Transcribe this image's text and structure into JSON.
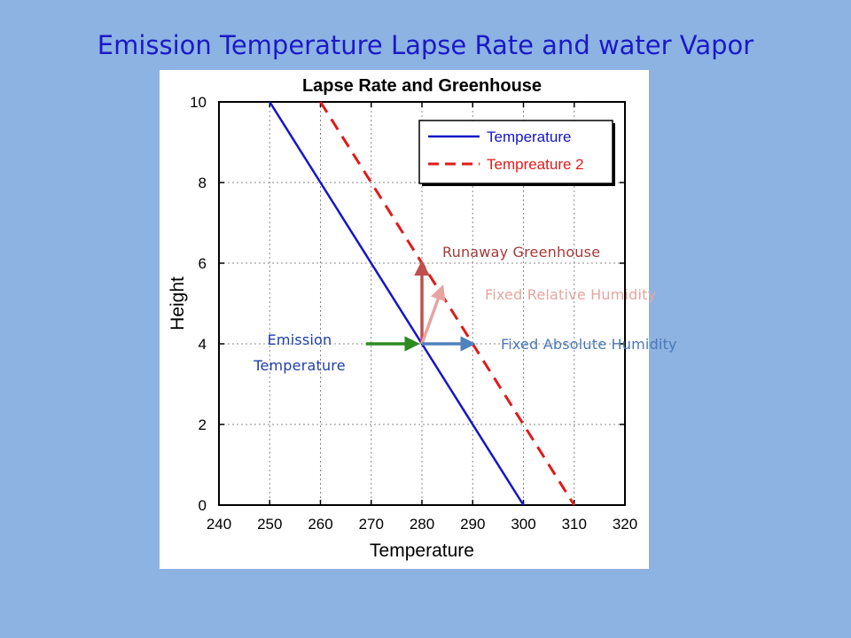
{
  "slide": {
    "title": "Emission Temperature Lapse Rate and water Vapor"
  },
  "annotations": {
    "emission_line1": "Emission",
    "emission_line2": "Temperature",
    "runaway": "Runaway Greenhouse",
    "relative": "Fixed Relative Humidity",
    "absolute": "Fixed Absolute Humidity"
  },
  "colors": {
    "background": "#8DB3E2",
    "title": "#1A1AC8",
    "series1": "#1515C8",
    "series2": "#E01A1A",
    "emission_arrow": "#2E8B22",
    "runaway_arrow": "#C0504D",
    "relative_arrow": "#E6A3A0",
    "absolute_arrow": "#4F81BD"
  },
  "chart_data": {
    "type": "line",
    "title": "Lapse Rate and Greenhouse",
    "xlabel": "Temperature",
    "ylabel": "Height",
    "xlim": [
      240,
      320
    ],
    "ylim": [
      0,
      10
    ],
    "xticks": [
      240,
      250,
      260,
      270,
      280,
      290,
      300,
      310,
      320
    ],
    "yticks": [
      0,
      2,
      4,
      6,
      8,
      10
    ],
    "grid": true,
    "legend_position": "top-right",
    "series": [
      {
        "name": "Temperature",
        "style": "solid",
        "x": [
          250,
          300
        ],
        "y": [
          10,
          0
        ]
      },
      {
        "name": "Tempreature 2",
        "style": "dashed",
        "x": [
          260,
          310
        ],
        "y": [
          10,
          0
        ]
      }
    ],
    "arrows": [
      {
        "label": "Emission Temperature",
        "from": [
          269,
          4
        ],
        "to": [
          279,
          4
        ]
      },
      {
        "label": "Runaway Greenhouse",
        "from": [
          280,
          4
        ],
        "to": [
          280,
          6
        ]
      },
      {
        "label": "Fixed Relative Humidity",
        "from": [
          280,
          4
        ],
        "to": [
          284,
          5.4
        ]
      },
      {
        "label": "Fixed Absolute Humidity",
        "from": [
          280,
          4
        ],
        "to": [
          290,
          4
        ]
      }
    ]
  }
}
